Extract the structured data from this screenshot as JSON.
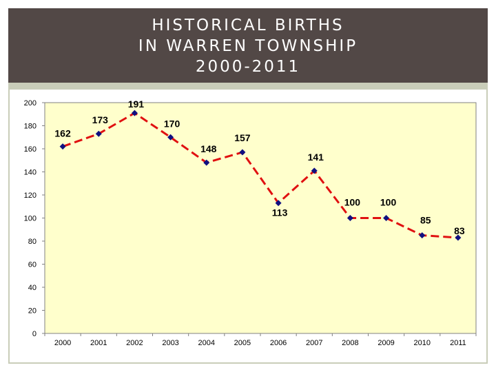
{
  "slide": {
    "title_line1": "HISTORICAL BIRTHS",
    "title_line2": "IN WARREN TOWNSHIP",
    "title_line3": "2000-2011"
  },
  "colors": {
    "title_bg": "#524846",
    "plot_bg": "#ffffcc",
    "line": "#e01010",
    "marker": "#101080"
  },
  "chart_data": {
    "type": "line",
    "title": "",
    "xlabel": "",
    "ylabel": "",
    "categories": [
      "2000",
      "2001",
      "2002",
      "2003",
      "2004",
      "2005",
      "2006",
      "2007",
      "2008",
      "2009",
      "2010",
      "2011"
    ],
    "values": [
      162,
      173,
      191,
      170,
      148,
      157,
      113,
      141,
      100,
      100,
      85,
      83
    ],
    "ylim": [
      0,
      200
    ],
    "yticks": [
      0,
      20,
      40,
      60,
      80,
      100,
      120,
      140,
      160,
      180,
      200
    ],
    "grid": false,
    "legend": "none",
    "line_style": "dashed",
    "marker": "diamond"
  }
}
